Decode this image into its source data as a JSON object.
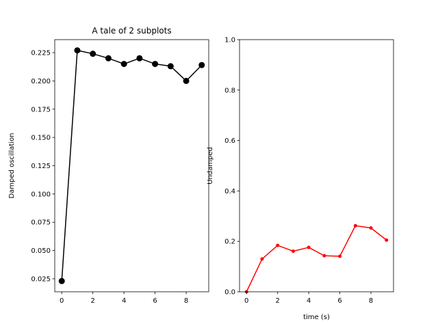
{
  "chart_data": [
    {
      "type": "line",
      "title": "A tale of 2 subplots",
      "xlabel": "",
      "ylabel": "Damped oscillation",
      "xlim": [
        -0.45,
        9.45
      ],
      "ylim": [
        0.0135,
        0.2365
      ],
      "x_ticks": [
        0,
        2,
        4,
        6,
        8
      ],
      "y_ticks": [
        0.025,
        0.05,
        0.075,
        0.1,
        0.125,
        0.15,
        0.175,
        0.2,
        0.225
      ],
      "x_tick_labels": [
        "0",
        "2",
        "4",
        "6",
        "8"
      ],
      "y_tick_labels": [
        "0.025",
        "0.050",
        "0.075",
        "0.100",
        "0.125",
        "0.150",
        "0.175",
        "0.200",
        "0.225"
      ],
      "grid": false,
      "series": [
        {
          "color": "#000000",
          "marker": "o",
          "x": [
            0,
            1,
            2,
            3,
            4,
            5,
            6,
            7,
            8,
            9
          ],
          "y": [
            0.023,
            0.227,
            0.224,
            0.22,
            0.215,
            0.22,
            0.215,
            0.213,
            0.2,
            0.214
          ]
        }
      ]
    },
    {
      "type": "line",
      "title": "",
      "xlabel": "time (s)",
      "ylabel": "Undamped",
      "xlim": [
        -0.45,
        9.45
      ],
      "ylim": [
        0.0,
        1.0
      ],
      "x_ticks": [
        0,
        2,
        4,
        6,
        8
      ],
      "y_ticks": [
        0.0,
        0.2,
        0.4,
        0.6,
        0.8,
        1.0
      ],
      "x_tick_labels": [
        "0",
        "2",
        "4",
        "6",
        "8"
      ],
      "y_tick_labels": [
        "0.0",
        "0.2",
        "0.4",
        "0.6",
        "0.8",
        "1.0"
      ],
      "grid": false,
      "series": [
        {
          "color": "#ff0000",
          "marker": ".",
          "x": [
            0,
            1,
            2,
            3,
            4,
            5,
            6,
            7,
            8,
            9
          ],
          "y": [
            0.0,
            0.13,
            0.184,
            0.161,
            0.176,
            0.143,
            0.141,
            0.262,
            0.253,
            0.205
          ]
        }
      ]
    }
  ]
}
